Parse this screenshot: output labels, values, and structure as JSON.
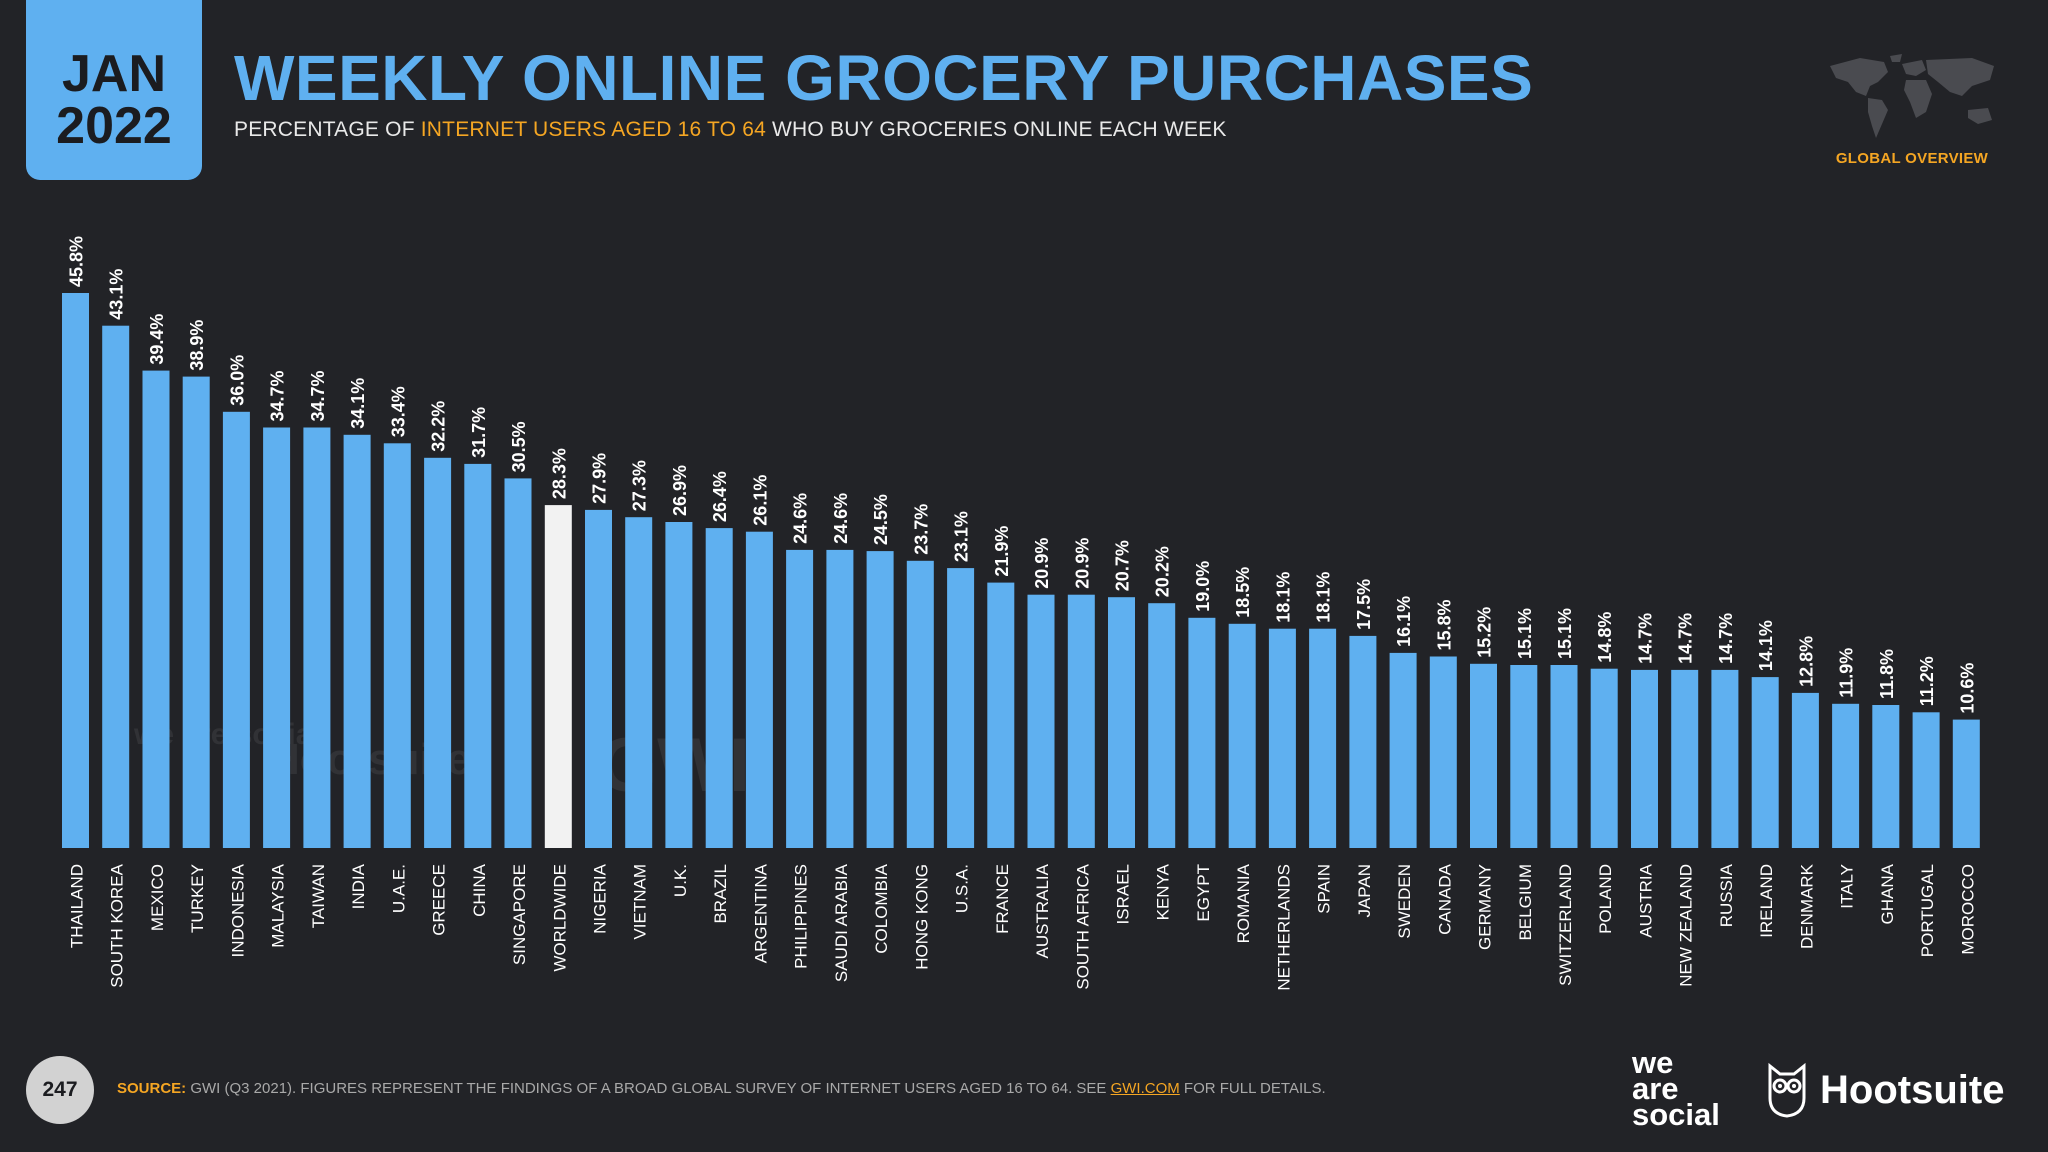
{
  "badge": {
    "month": "JAN",
    "year": "2022"
  },
  "title": "WEEKLY ONLINE GROCERY PURCHASES",
  "subtitle": {
    "before": "PERCENTAGE OF ",
    "highlight": "INTERNET USERS AGED 16 TO 64",
    "after": " WHO BUY GROCERIES ONLINE EACH WEEK"
  },
  "global_overview": "GLOBAL OVERVIEW",
  "colors": {
    "accent": "#5fb0f0",
    "highlight": "#f5a623",
    "worldwide_bar": "#f2f2f2",
    "background": "#222327"
  },
  "watermarks": {
    "we_are_social": "we are social",
    "hootsuite": "Hootsuite",
    "gwi": "GWI."
  },
  "footer": {
    "page_number": "247",
    "source_label": "SOURCE:",
    "source_text": " GWI (Q3 2021). FIGURES REPRESENT THE FINDINGS OF A BROAD GLOBAL SURVEY OF INTERNET USERS AGED 16 TO 64. SEE ",
    "source_link": "GWI.COM",
    "source_tail": " FOR FULL DETAILS.",
    "logo_line1": "we",
    "logo_line2": "are",
    "logo_line3": "social",
    "hootsuite": "Hootsuite"
  },
  "chart_data": {
    "type": "bar",
    "title": "WEEKLY ONLINE GROCERY PURCHASES",
    "xlabel": "",
    "ylabel": "",
    "ylim": [
      0,
      45.8
    ],
    "highlight_category": "WORLDWIDE",
    "value_suffix": "%",
    "categories": [
      "THAILAND",
      "SOUTH KOREA",
      "MEXICO",
      "TURKEY",
      "INDONESIA",
      "MALAYSIA",
      "TAIWAN",
      "INDIA",
      "U.A.E.",
      "GREECE",
      "CHINA",
      "SINGAPORE",
      "WORLDWIDE",
      "NIGERIA",
      "VIETNAM",
      "U.K.",
      "BRAZIL",
      "ARGENTINA",
      "PHILIPPINES",
      "SAUDI ARABIA",
      "COLOMBIA",
      "HONG KONG",
      "U.S.A.",
      "FRANCE",
      "AUSTRALIA",
      "SOUTH AFRICA",
      "ISRAEL",
      "KENYA",
      "EGYPT",
      "ROMANIA",
      "NETHERLANDS",
      "SPAIN",
      "JAPAN",
      "SWEDEN",
      "CANADA",
      "GERMANY",
      "BELGIUM",
      "SWITZERLAND",
      "POLAND",
      "AUSTRIA",
      "NEW ZEALAND",
      "RUSSIA",
      "IRELAND",
      "DENMARK",
      "ITALY",
      "GHANA",
      "PORTUGAL",
      "MOROCCO"
    ],
    "values": [
      45.8,
      43.1,
      39.4,
      38.9,
      36.0,
      34.7,
      34.7,
      34.1,
      33.4,
      32.2,
      31.7,
      30.5,
      28.3,
      27.9,
      27.3,
      26.9,
      26.4,
      26.1,
      24.6,
      24.6,
      24.5,
      23.7,
      23.1,
      21.9,
      20.9,
      20.9,
      20.7,
      20.2,
      19.0,
      18.5,
      18.1,
      18.1,
      17.5,
      16.1,
      15.8,
      15.2,
      15.1,
      15.1,
      14.8,
      14.7,
      14.7,
      14.7,
      14.1,
      12.8,
      11.9,
      11.8,
      11.2,
      10.6
    ]
  }
}
